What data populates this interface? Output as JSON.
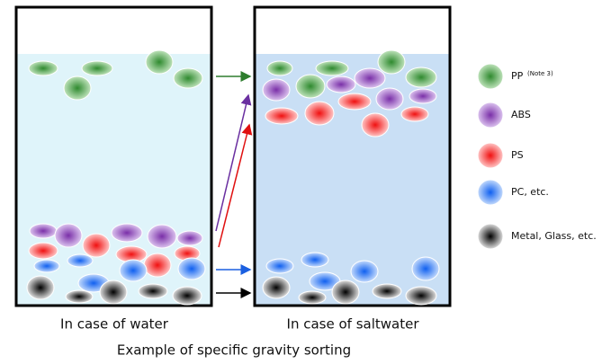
{
  "panels": [
    {
      "caption": "In case of water"
    },
    {
      "caption": "In case of saltwater"
    }
  ],
  "caption": "Example of specific gravity sorting",
  "legend": [
    {
      "label": "PP",
      "note": "(Note 3)"
    },
    {
      "label": "ABS"
    },
    {
      "label": "PS"
    },
    {
      "label": "PC, etc."
    },
    {
      "label": "Metal, Glass, etc."
    }
  ]
}
